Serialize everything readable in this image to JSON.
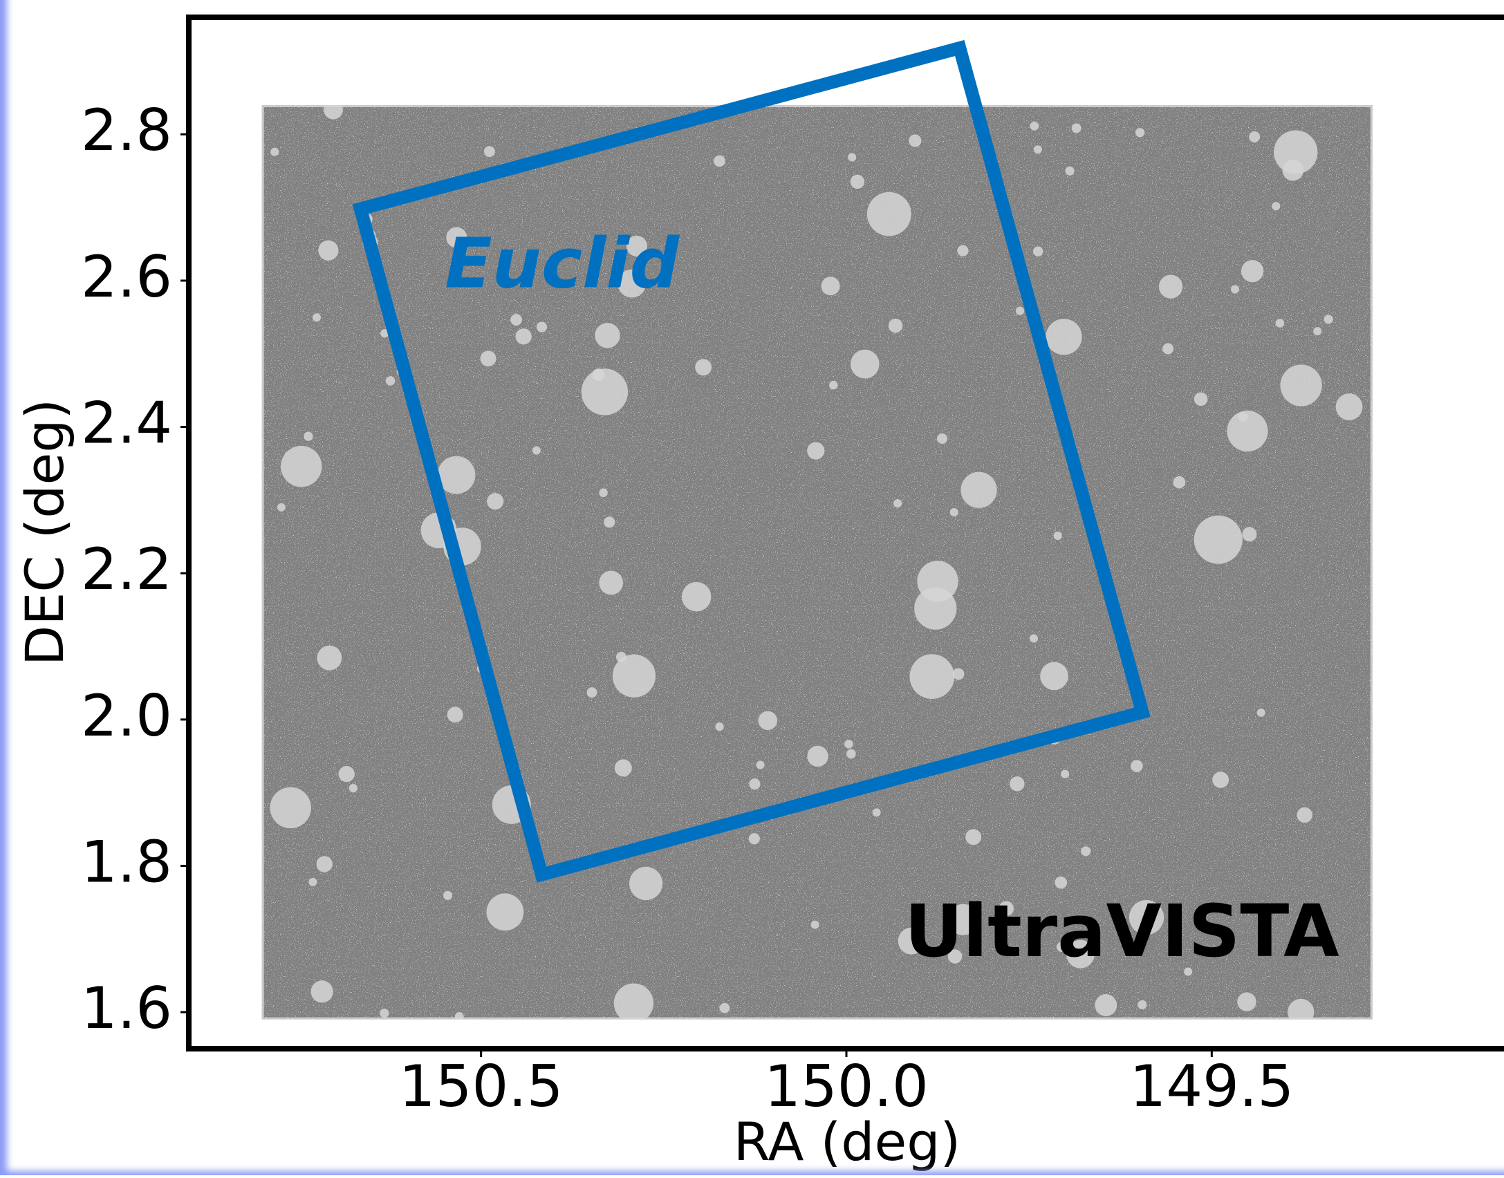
{
  "chart_data": {
    "type": "sky-footprint",
    "xlabel": "RA (deg)",
    "ylabel": "DEC (deg)",
    "xlim": [
      150.9,
      149.1
    ],
    "ylim": [
      1.55,
      2.96
    ],
    "xticks": [
      150.5,
      {
        "value": 150,
        "label": "150.0"
      },
      149.5
    ],
    "yticks": [
      {
        "value": 1.6,
        "label": "1.6"
      },
      1.8,
      {
        "value": 2,
        "label": "2.0"
      },
      2.2,
      2.4,
      2.6,
      2.8
    ],
    "footprints": [
      {
        "name": "UltraVISTA",
        "color": "#808080",
        "label_color": "#000000",
        "ra": [
          150.8,
          149.28,
          149.28,
          150.8
        ],
        "dec": [
          2.84,
          2.84,
          1.59,
          1.59
        ]
      },
      {
        "name": "Euclid",
        "color": "#0070c0",
        "label_color": "#0070c0",
        "ra": [
          150.665,
          149.845,
          149.595,
          150.417
        ],
        "dec": [
          2.698,
          2.918,
          2.01,
          1.788
        ]
      }
    ]
  }
}
